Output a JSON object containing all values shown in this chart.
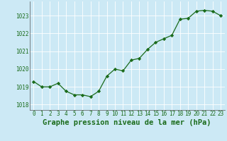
{
  "x": [
    0,
    1,
    2,
    3,
    4,
    5,
    6,
    7,
    8,
    9,
    10,
    11,
    12,
    13,
    14,
    15,
    16,
    17,
    18,
    19,
    20,
    21,
    22,
    23
  ],
  "y": [
    1019.3,
    1019.0,
    1019.0,
    1019.2,
    1018.75,
    1018.55,
    1018.55,
    1018.45,
    1018.75,
    1019.6,
    1020.0,
    1019.9,
    1020.5,
    1020.6,
    1021.1,
    1021.5,
    1021.7,
    1021.9,
    1022.8,
    1022.85,
    1023.25,
    1023.3,
    1023.25,
    1023.0
  ],
  "line_color": "#1a6b1a",
  "marker": "D",
  "marker_size": 2.2,
  "bg_color": "#cce9f5",
  "grid_color": "#ffffff",
  "xlabel": "Graphe pression niveau de la mer (hPa)",
  "xlabel_color": "#1a6b1a",
  "tick_color": "#1a6b1a",
  "ylim": [
    1017.7,
    1023.8
  ],
  "xlim": [
    -0.5,
    23.5
  ],
  "yticks": [
    1018,
    1019,
    1020,
    1021,
    1022,
    1023
  ],
  "xticks": [
    0,
    1,
    2,
    3,
    4,
    5,
    6,
    7,
    8,
    9,
    10,
    11,
    12,
    13,
    14,
    15,
    16,
    17,
    18,
    19,
    20,
    21,
    22,
    23
  ],
  "tick_fontsize": 5.5,
  "xlabel_fontsize": 7.5
}
